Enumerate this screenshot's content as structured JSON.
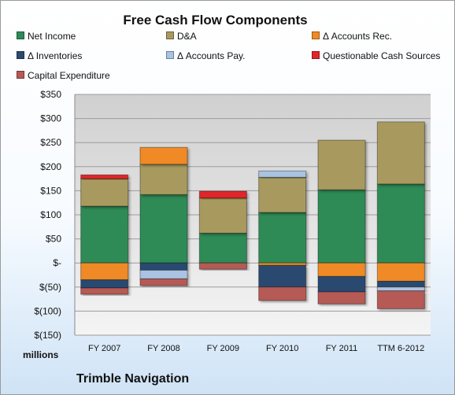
{
  "chart_data": {
    "type": "bar",
    "stacked": true,
    "title": "Free Cash Flow Components",
    "units_label": "millions",
    "footer": "Trimble Navigation",
    "categories": [
      "FY 2007",
      "FY 2008",
      "FY 2009",
      "FY 2010",
      "FY 2011",
      "TTM 6-2012"
    ],
    "ylim": [
      -150,
      350
    ],
    "yticks": [
      350,
      300,
      250,
      200,
      150,
      100,
      50,
      0,
      -50,
      -100,
      -150
    ],
    "ytick_labels": [
      "$350",
      "$300",
      "$250",
      "$200",
      "$150",
      "$100",
      "$50",
      "$-",
      "$(50)",
      "$(100)",
      "$(150)"
    ],
    "grid": true,
    "legend_position": "top",
    "series": [
      {
        "name": "Net Income",
        "color": "#2e8b57",
        "values": [
          118,
          142,
          62,
          105,
          152,
          164
        ]
      },
      {
        "name": "D&A",
        "color": "#a89a5e",
        "values": [
          57,
          63,
          73,
          73,
          103,
          129
        ]
      },
      {
        "name": "Δ Accounts Rec.",
        "color": "#ef8a26",
        "values": [
          -35,
          35,
          0,
          -5,
          -28,
          -38
        ]
      },
      {
        "name": "Δ Inventories",
        "color": "#2b4a6f",
        "values": [
          -17,
          -15,
          0,
          -45,
          -32,
          -12
        ]
      },
      {
        "name": "Δ Accounts Pay.",
        "color": "#a9c4e2",
        "values": [
          0,
          -18,
          0,
          13,
          0,
          -8
        ]
      },
      {
        "name": "Questionable Cash Sources",
        "color": "#e0262b",
        "values": [
          8,
          0,
          14,
          0,
          0,
          0
        ]
      },
      {
        "name": "Capital Expenditure",
        "color": "#b65a55",
        "values": [
          -13,
          -14,
          -13,
          -28,
          -25,
          -37
        ]
      }
    ]
  }
}
